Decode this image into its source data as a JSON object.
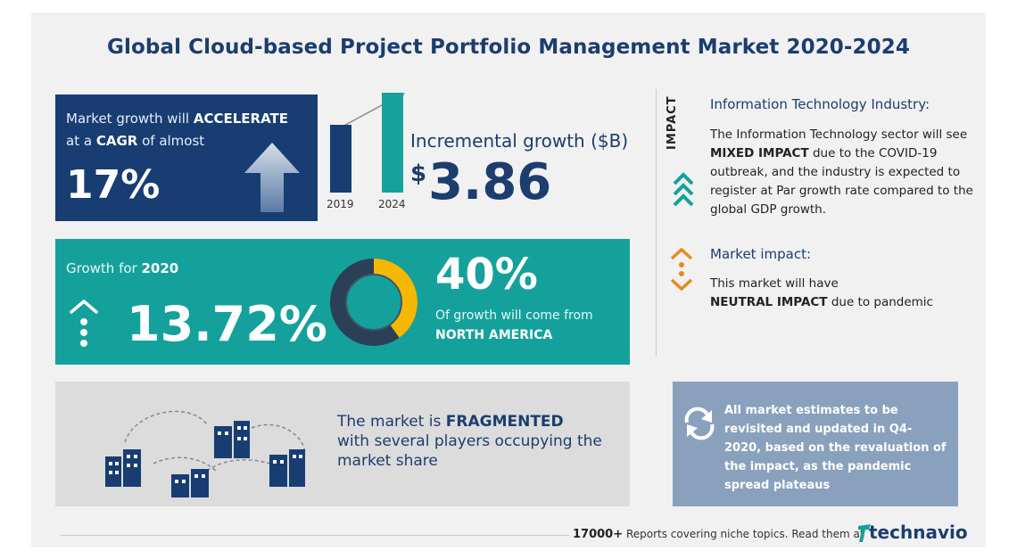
{
  "title": "Global Cloud-based Project Portfolio Management Market 2020-2024",
  "cagr": {
    "line1_prefix": "Market growth will",
    "line1_emph": "ACCELERATE",
    "line2_prefix": "at a",
    "line2_emph": "CAGR",
    "line2_suffix": "of almost",
    "value": "17%"
  },
  "incremental": {
    "years": [
      "2019",
      "2024"
    ],
    "label": "Incremental growth ($B)",
    "currency": "$",
    "value": "3.86"
  },
  "growth": {
    "label_prefix": "Growth for",
    "label_year": "2020",
    "value": "13.72%",
    "share_value": "40%",
    "share_fraction": 0.4,
    "share_desc": "Of growth will come from",
    "share_region": "NORTH AMERICA"
  },
  "fragmented": {
    "prefix": "The market is",
    "emph": "FRAGMENTED",
    "line2": "with several players occupying the",
    "line3": "market share"
  },
  "impact": {
    "tag": "IMPACT",
    "it_title": "Information Technology Industry:",
    "it_p1": "The Information Technology sector will see",
    "it_emph": "MIXED IMPACT",
    "it_p2": "due to the COVID-19 outbreak, and the industry is expected to register at Par growth rate compared to the global GDP growth.",
    "mi_title": "Market impact:",
    "mi_p1": "This market will have",
    "mi_emph": "NEUTRAL IMPACT",
    "mi_p2": "due to pandemic"
  },
  "note": {
    "text": "All market estimates to be revisited and updated in Q4-2020, based on the revaluation of the impact, as the pandemic spread plateaus"
  },
  "footer": {
    "count": "17000+",
    "text": "Reports covering niche topics. Read them at",
    "brand": "technavio"
  },
  "colors": {
    "navy": "#173d73",
    "teal": "#14a19b",
    "yellow": "#f5b800",
    "orange": "#e58a1f",
    "note_bg": "#8aa1bd"
  }
}
